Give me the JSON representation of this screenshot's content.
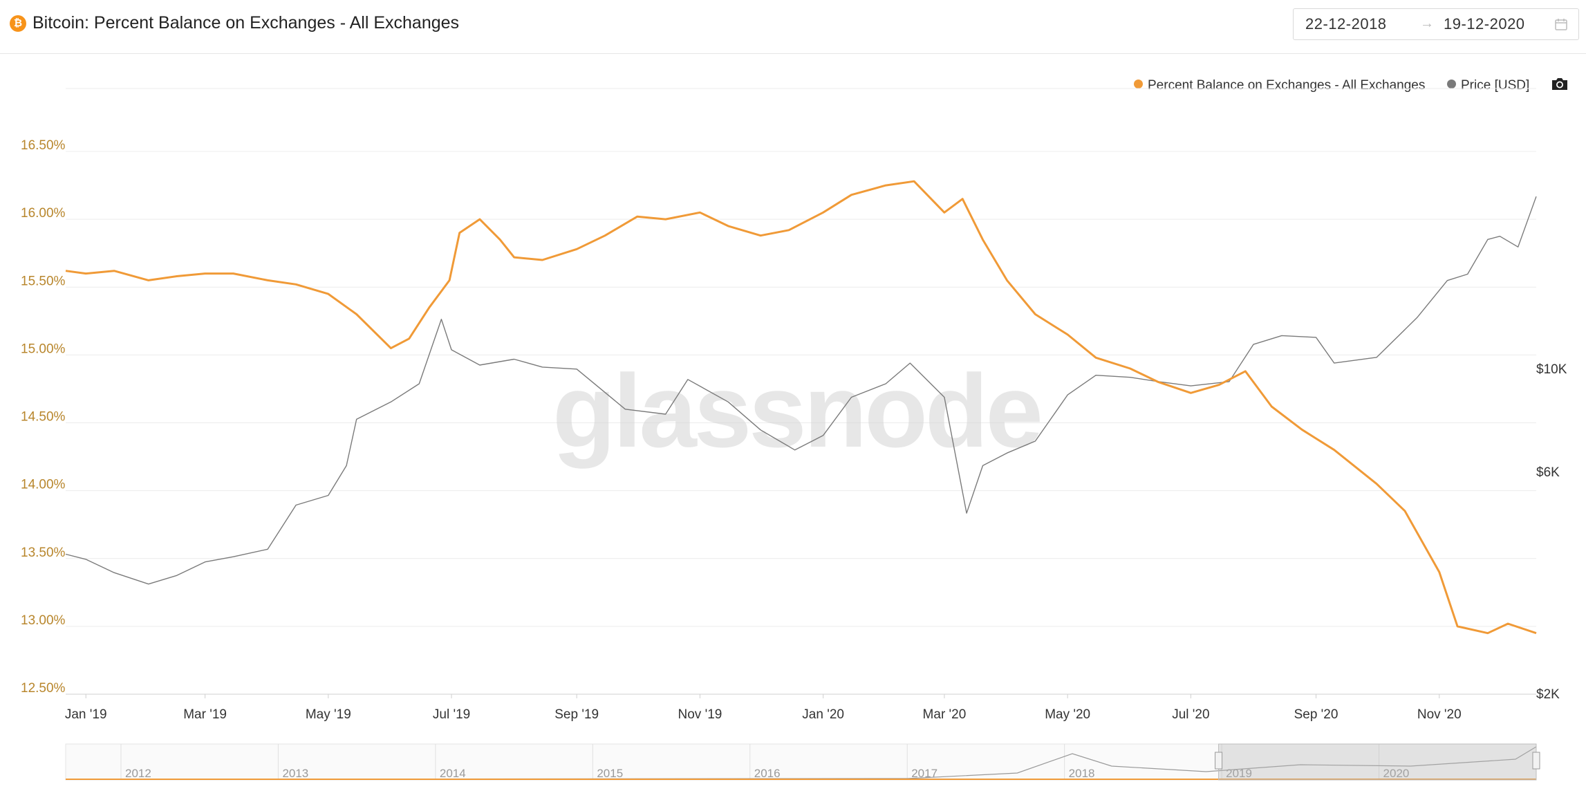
{
  "header": {
    "title": "Bitcoin: Percent Balance on Exchanges - All Exchanges",
    "icon": "bitcoin-icon",
    "date_start": "22-12-2018",
    "date_arrow": "→",
    "date_end": "19-12-2020"
  },
  "legend": [
    {
      "label": "Percent Balance on Exchanges - All Exchanges",
      "color": "#f09a37"
    },
    {
      "label": "Price [USD]",
      "color": "#7a7a7a"
    }
  ],
  "watermark": "glassnode",
  "chart_data": {
    "type": "line",
    "title": "Bitcoin: Percent Balance on Exchanges - All Exchanges",
    "x_range": [
      "2018-12-22",
      "2020-12-19"
    ],
    "x_ticks": [
      {
        "date": "2019-01-01",
        "label": "Jan '19"
      },
      {
        "date": "2019-03-01",
        "label": "Mar '19"
      },
      {
        "date": "2019-05-01",
        "label": "May '19"
      },
      {
        "date": "2019-07-01",
        "label": "Jul '19"
      },
      {
        "date": "2019-09-01",
        "label": "Sep '19"
      },
      {
        "date": "2019-11-01",
        "label": "Nov '19"
      },
      {
        "date": "2020-01-01",
        "label": "Jan '20"
      },
      {
        "date": "2020-03-01",
        "label": "Mar '20"
      },
      {
        "date": "2020-05-01",
        "label": "May '20"
      },
      {
        "date": "2020-07-01",
        "label": "Jul '20"
      },
      {
        "date": "2020-09-01",
        "label": "Sep '20"
      },
      {
        "date": "2020-11-01",
        "label": "Nov '20"
      }
    ],
    "y_left": {
      "range": [
        12.5,
        16.5
      ],
      "unit": "%",
      "ticks": [
        {
          "value": 16.5,
          "label": "16.50%"
        },
        {
          "value": 16.0,
          "label": "16.00%"
        },
        {
          "value": 15.5,
          "label": "15.50%"
        },
        {
          "value": 15.0,
          "label": "15.00%"
        },
        {
          "value": 14.5,
          "label": "14.50%"
        },
        {
          "value": 14.0,
          "label": "14.00%"
        },
        {
          "value": 13.5,
          "label": "13.50%"
        },
        {
          "value": 13.0,
          "label": "13.00%"
        },
        {
          "value": 12.5,
          "label": "12.50%"
        }
      ]
    },
    "y_right": {
      "scale": "log",
      "range": [
        2000,
        24000
      ],
      "ticks": [
        {
          "value": 10000,
          "label": "$10K"
        },
        {
          "value": 6000,
          "label": "$6K"
        },
        {
          "value": 2000,
          "label": "$2K"
        }
      ]
    },
    "grid": true,
    "legend_position": "top-right",
    "series": [
      {
        "name": "Percent Balance on Exchanges - All Exchanges",
        "axis": "left",
        "color": "#f09a37",
        "points": [
          [
            "2018-12-22",
            15.62
          ],
          [
            "2019-01-01",
            15.6
          ],
          [
            "2019-01-15",
            15.62
          ],
          [
            "2019-02-01",
            15.55
          ],
          [
            "2019-02-15",
            15.58
          ],
          [
            "2019-03-01",
            15.6
          ],
          [
            "2019-03-15",
            15.6
          ],
          [
            "2019-04-01",
            15.55
          ],
          [
            "2019-04-15",
            15.52
          ],
          [
            "2019-05-01",
            15.45
          ],
          [
            "2019-05-15",
            15.3
          ],
          [
            "2019-06-01",
            15.05
          ],
          [
            "2019-06-10",
            15.12
          ],
          [
            "2019-06-20",
            15.35
          ],
          [
            "2019-06-30",
            15.55
          ],
          [
            "2019-07-05",
            15.9
          ],
          [
            "2019-07-15",
            16.0
          ],
          [
            "2019-07-25",
            15.85
          ],
          [
            "2019-08-01",
            15.72
          ],
          [
            "2019-08-15",
            15.7
          ],
          [
            "2019-09-01",
            15.78
          ],
          [
            "2019-09-15",
            15.88
          ],
          [
            "2019-10-01",
            16.02
          ],
          [
            "2019-10-15",
            16.0
          ],
          [
            "2019-11-01",
            16.05
          ],
          [
            "2019-11-15",
            15.95
          ],
          [
            "2019-12-01",
            15.88
          ],
          [
            "2019-12-15",
            15.92
          ],
          [
            "2020-01-01",
            16.05
          ],
          [
            "2020-01-15",
            16.18
          ],
          [
            "2020-02-01",
            16.25
          ],
          [
            "2020-02-15",
            16.28
          ],
          [
            "2020-03-01",
            16.05
          ],
          [
            "2020-03-10",
            16.15
          ],
          [
            "2020-03-20",
            15.85
          ],
          [
            "2020-04-01",
            15.55
          ],
          [
            "2020-04-15",
            15.3
          ],
          [
            "2020-05-01",
            15.15
          ],
          [
            "2020-05-15",
            14.98
          ],
          [
            "2020-06-01",
            14.9
          ],
          [
            "2020-06-15",
            14.8
          ],
          [
            "2020-07-01",
            14.72
          ],
          [
            "2020-07-15",
            14.78
          ],
          [
            "2020-07-28",
            14.88
          ],
          [
            "2020-08-10",
            14.62
          ],
          [
            "2020-08-25",
            14.45
          ],
          [
            "2020-09-10",
            14.3
          ],
          [
            "2020-10-01",
            14.05
          ],
          [
            "2020-10-15",
            13.85
          ],
          [
            "2020-11-01",
            13.4
          ],
          [
            "2020-11-10",
            13.0
          ],
          [
            "2020-11-25",
            12.95
          ],
          [
            "2020-12-05",
            13.02
          ],
          [
            "2020-12-19",
            12.95
          ]
        ]
      },
      {
        "name": "Price [USD]",
        "axis": "right",
        "color": "#7a7a7a",
        "points": [
          [
            "2018-12-22",
            4000
          ],
          [
            "2019-01-01",
            3900
          ],
          [
            "2019-01-15",
            3650
          ],
          [
            "2019-02-01",
            3450
          ],
          [
            "2019-02-15",
            3600
          ],
          [
            "2019-03-01",
            3850
          ],
          [
            "2019-03-15",
            3950
          ],
          [
            "2019-04-01",
            4100
          ],
          [
            "2019-04-15",
            5100
          ],
          [
            "2019-05-01",
            5350
          ],
          [
            "2019-05-10",
            6200
          ],
          [
            "2019-05-15",
            7800
          ],
          [
            "2019-06-01",
            8500
          ],
          [
            "2019-06-15",
            9300
          ],
          [
            "2019-06-26",
            12800
          ],
          [
            "2019-07-01",
            11000
          ],
          [
            "2019-07-15",
            10200
          ],
          [
            "2019-08-01",
            10500
          ],
          [
            "2019-08-15",
            10100
          ],
          [
            "2019-09-01",
            10000
          ],
          [
            "2019-09-25",
            8200
          ],
          [
            "2019-10-15",
            8000
          ],
          [
            "2019-10-26",
            9500
          ],
          [
            "2019-11-15",
            8500
          ],
          [
            "2019-12-01",
            7400
          ],
          [
            "2019-12-18",
            6700
          ],
          [
            "2020-01-01",
            7200
          ],
          [
            "2020-01-15",
            8700
          ],
          [
            "2020-02-01",
            9300
          ],
          [
            "2020-02-13",
            10300
          ],
          [
            "2020-03-01",
            8700
          ],
          [
            "2020-03-12",
            4900
          ],
          [
            "2020-03-20",
            6200
          ],
          [
            "2020-04-01",
            6600
          ],
          [
            "2020-04-15",
            7000
          ],
          [
            "2020-05-01",
            8800
          ],
          [
            "2020-05-15",
            9700
          ],
          [
            "2020-06-01",
            9600
          ],
          [
            "2020-06-15",
            9400
          ],
          [
            "2020-07-01",
            9200
          ],
          [
            "2020-07-20",
            9400
          ],
          [
            "2020-08-01",
            11300
          ],
          [
            "2020-08-15",
            11800
          ],
          [
            "2020-09-01",
            11700
          ],
          [
            "2020-09-10",
            10300
          ],
          [
            "2020-10-01",
            10600
          ],
          [
            "2020-10-21",
            12900
          ],
          [
            "2020-11-05",
            15500
          ],
          [
            "2020-11-15",
            16000
          ],
          [
            "2020-11-25",
            19000
          ],
          [
            "2020-12-01",
            19300
          ],
          [
            "2020-12-10",
            18300
          ],
          [
            "2020-12-19",
            23500
          ]
        ]
      }
    ],
    "navigator": {
      "year_labels": [
        "2012",
        "2013",
        "2014",
        "2015",
        "2016",
        "2017",
        "2018",
        "2019",
        "2020"
      ]
    }
  }
}
